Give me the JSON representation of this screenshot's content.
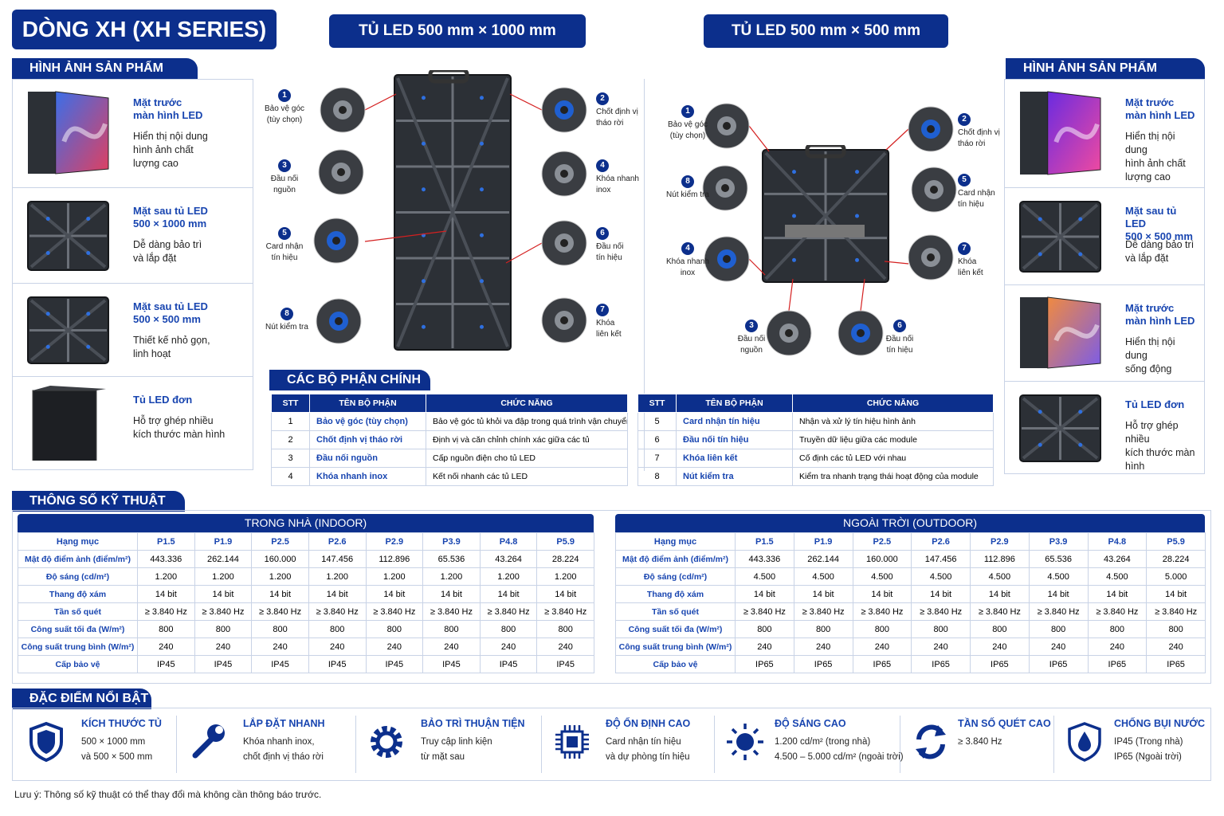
{
  "header": {
    "title": "DÒNG XH (XH SERIES)",
    "cabinet_titles": [
      "TỦ LED 500 mm × 1000 mm",
      "TỦ LED 500 mm × 500 mm"
    ]
  },
  "left_products": {
    "heading": "HÌNH ẢNH SẢN PHẨM",
    "items": [
      {
        "title": "Mặt trước\nmàn hình LED",
        "desc": "Hiển thị nội dung\nhình ảnh chất\nlượng cao"
      },
      {
        "title": "Mặt sau tủ LED\n500 × 1000 mm",
        "desc": "Dễ dàng bảo trì\nvà lắp đặt"
      },
      {
        "title": "Mặt sau tủ LED\n500 × 500 mm",
        "desc": "Thiết kế nhỏ gọn,\nlinh hoạt"
      },
      {
        "title": "Tủ LED đơn",
        "desc": "Hỗ trợ ghép nhiều\nkích thước màn hình"
      }
    ]
  },
  "right_products": {
    "heading": "HÌNH ẢNH SẢN PHẨM",
    "items": [
      {
        "title": "Mặt trước\nmàn hình LED",
        "desc": "Hiển thị nội dung\nhình ảnh chất\nlượng cao"
      },
      {
        "title": "Mặt sau tủ LED\n500 × 500 mm",
        "desc": "Dễ dàng bảo trì\nvà lắp đặt"
      },
      {
        "title": "Mặt trước\nmàn hình LED",
        "desc": "Hiển thị nội dung\nsống động"
      },
      {
        "title": "Tủ LED đơn",
        "desc": "Hỗ trợ ghép nhiều\nkích thước màn hình"
      }
    ]
  },
  "diagrams": [
    {
      "callouts": [
        {
          "number": "1",
          "label": "Bảo vệ góc\n(tùy chọn)"
        },
        {
          "number": "2",
          "label": "Chốt định vị\ntháo rời"
        },
        {
          "number": "3",
          "label": "Đầu nối\nnguồn"
        },
        {
          "number": "4",
          "label": "Khóa nhanh\ninox"
        },
        {
          "number": "5",
          "label": "Card nhận\ntín hiệu"
        },
        {
          "number": "6",
          "label": "Đầu nối\ntín hiệu"
        },
        {
          "number": "7",
          "label": "Khóa\nliên kết"
        },
        {
          "number": "8",
          "label": "Nút kiểm tra"
        }
      ]
    },
    {
      "callouts": [
        {
          "number": "1",
          "label": "Bảo vệ góc\n(tùy chọn)"
        },
        {
          "number": "2",
          "label": "Chốt định vị\ntháo rời"
        },
        {
          "number": "8",
          "label": "Nút kiểm tra"
        },
        {
          "number": "5",
          "label": "Card nhận\ntín hiệu"
        },
        {
          "number": "4",
          "label": "Khóa nhanh\ninox"
        },
        {
          "number": "7",
          "label": "Khóa\nliên kết"
        },
        {
          "number": "3",
          "label": "Đầu nối\nnguồn"
        },
        {
          "number": "6",
          "label": "Đầu nối\ntín hiệu"
        }
      ]
    }
  ],
  "parts": {
    "heading": "CÁC BỘ PHẬN CHÍNH",
    "columns": [
      "STT",
      "TÊN BỘ PHẬN",
      "CHỨC NĂNG"
    ],
    "tables": [
      [
        [
          "1",
          "Bảo vệ góc (tùy chọn)",
          "Bảo vệ góc tủ khỏi va đập trong quá trình vận chuyển và lắp đặt"
        ],
        [
          "2",
          "Chốt định vị tháo rời",
          "Định vị và căn chỉnh chính xác giữa các tủ"
        ],
        [
          "3",
          "Đầu nối nguồn",
          "Cấp nguồn điện cho tủ LED"
        ],
        [
          "4",
          "Khóa nhanh inox",
          "Kết nối nhanh các tủ LED"
        ]
      ],
      [
        [
          "5",
          "Card nhận tín hiệu",
          "Nhận và xử lý tín hiệu hình ảnh"
        ],
        [
          "6",
          "Đầu nối tín hiệu",
          "Truyền dữ liệu giữa các module"
        ],
        [
          "7",
          "Khóa liên kết",
          "Cố định các tủ LED với nhau"
        ],
        [
          "8",
          "Nút kiểm tra",
          "Kiểm tra nhanh trạng thái hoạt động của module"
        ]
      ]
    ]
  },
  "specs": {
    "heading": "THÔNG SỐ KỸ THUẬT",
    "tables": [
      {
        "title": "TRONG NHÀ (INDOOR)",
        "columns": [
          "Hạng mục",
          "P1.5",
          "P1.9",
          "P2.5",
          "P2.6",
          "P2.9",
          "P3.9",
          "P4.8",
          "P5.9"
        ],
        "rows": [
          [
            "Mật độ điểm ảnh (điểm/m²)",
            "443.336",
            "262.144",
            "160.000",
            "147.456",
            "112.896",
            "65.536",
            "43.264",
            "28.224"
          ],
          [
            "Độ sáng (cd/m²)",
            "1.200",
            "1.200",
            "1.200",
            "1.200",
            "1.200",
            "1.200",
            "1.200",
            "1.200"
          ],
          [
            "Thang độ xám",
            "14 bit",
            "14 bit",
            "14 bit",
            "14 bit",
            "14 bit",
            "14 bit",
            "14 bit",
            "14 bit"
          ],
          [
            "Tần số quét",
            "≥ 3.840 Hz",
            "≥ 3.840 Hz",
            "≥ 3.840 Hz",
            "≥ 3.840 Hz",
            "≥ 3.840 Hz",
            "≥ 3.840 Hz",
            "≥ 3.840 Hz",
            "≥ 3.840 Hz"
          ],
          [
            "Công suất tối đa (W/m²)",
            "800",
            "800",
            "800",
            "800",
            "800",
            "800",
            "800",
            "800"
          ],
          [
            "Công suất trung bình (W/m²)",
            "240",
            "240",
            "240",
            "240",
            "240",
            "240",
            "240",
            "240"
          ],
          [
            "Cấp bảo vệ",
            "IP45",
            "IP45",
            "IP45",
            "IP45",
            "IP45",
            "IP45",
            "IP45",
            "IP45"
          ]
        ]
      },
      {
        "title": "NGOÀI TRỜI (OUTDOOR)",
        "columns": [
          "Hạng mục",
          "P1.5",
          "P1.9",
          "P2.5",
          "P2.6",
          "P2.9",
          "P3.9",
          "P4.8",
          "P5.9"
        ],
        "rows": [
          [
            "Mật độ điểm ảnh (điểm/m²)",
            "443.336",
            "262.144",
            "160.000",
            "147.456",
            "112.896",
            "65.536",
            "43.264",
            "28.224"
          ],
          [
            "Độ sáng (cd/m²)",
            "4.500",
            "4.500",
            "4.500",
            "4.500",
            "4.500",
            "4.500",
            "4.500",
            "5.000"
          ],
          [
            "Thang độ xám",
            "14 bit",
            "14 bit",
            "14 bit",
            "14 bit",
            "14 bit",
            "14 bit",
            "14 bit",
            "14 bit"
          ],
          [
            "Tần số quét",
            "≥ 3.840 Hz",
            "≥ 3.840 Hz",
            "≥ 3.840 Hz",
            "≥ 3.840 Hz",
            "≥ 3.840 Hz",
            "≥ 3.840 Hz",
            "≥ 3.840 Hz",
            "≥ 3.840 Hz"
          ],
          [
            "Công suất tối đa (W/m²)",
            "800",
            "800",
            "800",
            "800",
            "800",
            "800",
            "800",
            "800"
          ],
          [
            "Công suất trung bình (W/m²)",
            "240",
            "240",
            "240",
            "240",
            "240",
            "240",
            "240",
            "240"
          ],
          [
            "Cấp bảo vệ",
            "IP65",
            "IP65",
            "IP65",
            "IP65",
            "IP65",
            "IP65",
            "IP65",
            "IP65"
          ]
        ]
      }
    ]
  },
  "features": {
    "heading": "ĐẶC ĐIỂM NỔI BẬT",
    "items": [
      {
        "title": "KÍCH THƯỚC TỦ",
        "desc": "500 × 1000 mm\nvà 500 × 500 mm"
      },
      {
        "title": "LẮP ĐẶT NHANH",
        "desc": "Khóa nhanh inox,\nchốt định vị tháo rời"
      },
      {
        "title": "BẢO TRÌ THUẬN TIỆN",
        "desc": "Truy cập linh kiện\ntừ mặt sau"
      },
      {
        "title": "ĐỘ ỔN ĐỊNH CAO",
        "desc": "Card nhận tín hiệu\nvà dự phòng tín hiệu"
      },
      {
        "title": "ĐỘ SÁNG CAO",
        "desc": "1.200 cd/m² (trong nhà)\n4.500 – 5.000 cd/m² (ngoài trời)"
      },
      {
        "title": "TẦN SỐ QUÉT CAO",
        "desc": "≥ 3.840 Hz"
      },
      {
        "title": "CHỐNG BỤI NƯỚC",
        "desc": "IP45 (Trong nhà)\nIP65 (Ngoài trời)"
      }
    ]
  },
  "note": "Lưu ý: Thông số kỹ thuật có thể thay đổi mà không cần thông báo trước."
}
